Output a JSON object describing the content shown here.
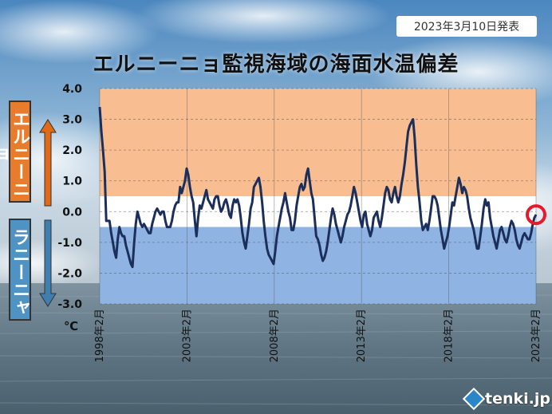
{
  "release_date": "2023年3月10日発表",
  "title": "エルニーニョ監視海域の海面水温偏差",
  "side_labels": {
    "elnino": "エルニーニョ",
    "lanina": "ラニーニャ"
  },
  "brand": "tenki.jp",
  "colors": {
    "elnino_band": "#f8be92",
    "lanina_band": "#8fb4e4",
    "neutral_band": "#ffffff",
    "line": "#1b2f5a",
    "marker": "#e8192c",
    "elnino_arrow": "#e06a1a",
    "lanina_arrow": "#3e7fb0"
  },
  "chart_data": {
    "type": "line",
    "title": "エルニーニョ監視海域の海面水温偏差",
    "ylabel": "℃",
    "ylim": [
      -3.0,
      4.0
    ],
    "yticks": [
      "4.0",
      "3.0",
      "2.0",
      "1.0",
      "0.0",
      "-1.0",
      "-2.0",
      "-3.0"
    ],
    "xticks": [
      "1998年2月",
      "2003年2月",
      "2008年2月",
      "2013年2月",
      "2018年2月",
      "2023年2月"
    ],
    "x_range": [
      "1998-02",
      "2023-02"
    ],
    "grid": true,
    "thresholds": {
      "elnino": 0.5,
      "lanina": -0.5
    },
    "highlight": {
      "x": "2023-02",
      "y": -0.1
    },
    "series": [
      {
        "values": [
          3.4,
          2.6,
          2.0,
          1.3,
          -0.3,
          -0.3,
          -0.3,
          -0.7,
          -1.0,
          -1.3,
          -1.5,
          -0.9,
          -0.5,
          -0.7,
          -0.8,
          -0.8,
          -1.1,
          -1.3,
          -1.5,
          -1.7,
          -1.8,
          -1.0,
          -0.4,
          0.0,
          -0.2,
          -0.4,
          -0.5,
          -0.4,
          -0.5,
          -0.6,
          -0.7,
          -0.7,
          -0.4,
          -0.2,
          0.0,
          0.1,
          0.0,
          -0.1,
          0.0,
          0.0,
          -0.3,
          -0.5,
          -0.5,
          -0.5,
          -0.3,
          0.0,
          0.2,
          0.3,
          0.3,
          0.8,
          0.6,
          0.8,
          1.0,
          1.4,
          1.2,
          0.8,
          0.5,
          0.3,
          -0.3,
          -0.8,
          -0.2,
          0.2,
          0.1,
          0.3,
          0.5,
          0.7,
          0.4,
          0.3,
          0.2,
          0.1,
          0.4,
          0.5,
          0.5,
          0.2,
          0.0,
          0.1,
          0.3,
          0.4,
          0.2,
          -0.1,
          -0.2,
          0.2,
          0.4,
          0.3,
          0.4,
          0.2,
          -0.2,
          -0.7,
          -1.0,
          -1.2,
          -0.8,
          -0.4,
          0.1,
          0.3,
          0.8,
          0.9,
          1.0,
          1.1,
          0.8,
          0.3,
          -0.3,
          -0.8,
          -1.2,
          -1.4,
          -1.5,
          -1.6,
          -1.7,
          -1.3,
          -0.8,
          -0.5,
          -0.2,
          0.1,
          0.3,
          0.6,
          0.3,
          0.0,
          -0.2,
          -0.6,
          -0.6,
          -0.3,
          0.2,
          0.5,
          0.8,
          0.9,
          0.7,
          0.8,
          1.2,
          1.4,
          1.0,
          0.6,
          0.4,
          -0.2,
          -0.8,
          -0.9,
          -1.1,
          -1.4,
          -1.6,
          -1.5,
          -1.3,
          -1.0,
          -0.6,
          -0.2,
          0.1,
          -0.1,
          -0.4,
          -0.6,
          -0.8,
          -1.0,
          -0.8,
          -0.5,
          -0.3,
          -0.1,
          0.0,
          0.2,
          0.5,
          0.8,
          0.6,
          0.3,
          0.0,
          -0.3,
          -0.5,
          -0.1,
          0.0,
          -0.4,
          -0.6,
          -0.8,
          -0.6,
          -0.2,
          -0.1,
          0.0,
          -0.3,
          -0.5,
          -0.2,
          0.2,
          0.6,
          0.8,
          0.7,
          0.4,
          0.3,
          0.6,
          0.8,
          0.5,
          0.3,
          0.5,
          0.9,
          1.2,
          1.6,
          2.1,
          2.6,
          2.8,
          2.9,
          3.0,
          2.4,
          1.5,
          0.8,
          0.3,
          -0.3,
          -0.6,
          -0.5,
          -0.4,
          -0.6,
          -0.3,
          0.1,
          0.5,
          0.5,
          0.4,
          0.2,
          -0.2,
          -0.6,
          -0.9,
          -1.2,
          -1.0,
          -0.8,
          -0.5,
          -0.1,
          0.3,
          0.2,
          0.5,
          0.8,
          1.1,
          0.9,
          0.6,
          0.8,
          0.7,
          0.5,
          0.1,
          -0.2,
          -0.4,
          -0.6,
          -0.9,
          -1.2,
          -1.2,
          -0.8,
          -0.4,
          0.1,
          0.4,
          0.2,
          0.3,
          -0.2,
          -0.5,
          -0.8,
          -1.0,
          -1.2,
          -0.9,
          -0.6,
          -0.5,
          -0.7,
          -0.9,
          -1.0,
          -0.8,
          -0.5,
          -0.3,
          -0.4,
          -0.6,
          -0.9,
          -1.1,
          -1.2,
          -1.0,
          -0.8,
          -0.7,
          -0.8,
          -0.9,
          -0.9,
          -0.7,
          -0.4,
          -0.2,
          -0.1
        ]
      }
    ]
  }
}
